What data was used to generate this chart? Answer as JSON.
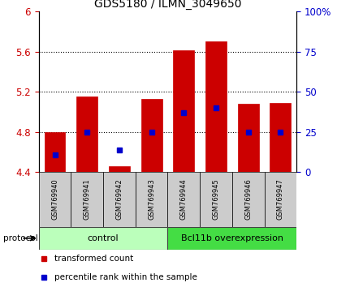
{
  "title": "GDS5180 / ILMN_3049650",
  "samples": [
    "GSM769940",
    "GSM769941",
    "GSM769942",
    "GSM769943",
    "GSM769944",
    "GSM769945",
    "GSM769946",
    "GSM769947"
  ],
  "transformed_counts": [
    4.8,
    5.15,
    4.46,
    5.13,
    5.61,
    5.7,
    5.08,
    5.09
  ],
  "percentile_ranks": [
    11,
    25,
    14,
    25,
    37,
    40,
    25,
    25
  ],
  "bar_bottom": 4.4,
  "ylim_left": [
    4.4,
    6.0
  ],
  "ylim_right": [
    0,
    100
  ],
  "yticks_left": [
    4.4,
    4.8,
    5.2,
    5.6,
    6.0
  ],
  "ytick_labels_left": [
    "4.4",
    "4.8",
    "5.2",
    "5.6",
    "6"
  ],
  "yticks_right": [
    0,
    25,
    50,
    75,
    100
  ],
  "ytick_labels_right": [
    "0",
    "25",
    "50",
    "75",
    "100%"
  ],
  "bar_color": "#cc0000",
  "percentile_color": "#0000cc",
  "bar_width": 0.65,
  "groups": [
    {
      "label": "control",
      "indices": [
        0,
        1,
        2,
        3
      ],
      "color": "#bbffbb"
    },
    {
      "label": "Bcl11b overexpression",
      "indices": [
        4,
        5,
        6,
        7
      ],
      "color": "#44dd44"
    }
  ],
  "protocol_label": "protocol",
  "tick_label_color_left": "#cc0000",
  "tick_label_color_right": "#0000cc",
  "legend_items": [
    {
      "color": "#cc0000",
      "label": "transformed count"
    },
    {
      "color": "#0000cc",
      "label": "percentile rank within the sample"
    }
  ]
}
